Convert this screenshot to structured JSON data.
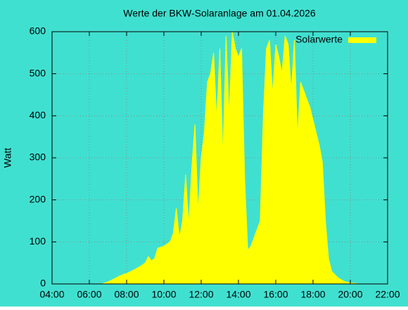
{
  "chart_data": {
    "type": "area",
    "title": "Werte der BKW-Solaranlage am 01.04.2026",
    "y_label": "Watt",
    "x": [
      "06:40",
      "07:00",
      "07:20",
      "07:40",
      "08:00",
      "08:20",
      "08:40",
      "09:00",
      "09:10",
      "09:20",
      "09:30",
      "09:40",
      "10:00",
      "10:20",
      "10:30",
      "10:40",
      "10:50",
      "11:00",
      "11:10",
      "11:20",
      "11:30",
      "11:40",
      "11:50",
      "12:00",
      "12:10",
      "12:20",
      "12:30",
      "12:40",
      "12:50",
      "13:00",
      "13:10",
      "13:20",
      "13:30",
      "13:40",
      "13:50",
      "14:00",
      "14:10",
      "14:20",
      "14:30",
      "14:40",
      "14:50",
      "15:00",
      "15:10",
      "15:20",
      "15:30",
      "15:40",
      "15:50",
      "16:00",
      "16:10",
      "16:20",
      "16:30",
      "16:40",
      "16:50",
      "17:00",
      "17:10",
      "17:20",
      "17:30",
      "17:40",
      "17:50",
      "18:00",
      "18:10",
      "18:20",
      "18:30",
      "18:40",
      "18:50",
      "19:00",
      "19:20",
      "19:40",
      "20:00",
      "20:30"
    ],
    "series": [
      {
        "name": "Solarwerte",
        "color": "#ffff00",
        "values": [
          0,
          5,
          12,
          20,
          25,
          32,
          40,
          50,
          65,
          55,
          60,
          85,
          90,
          100,
          120,
          180,
          110,
          150,
          260,
          140,
          280,
          380,
          170,
          300,
          360,
          480,
          500,
          550,
          390,
          560,
          300,
          590,
          400,
          600,
          560,
          540,
          560,
          250,
          80,
          90,
          110,
          130,
          150,
          400,
          560,
          580,
          450,
          570,
          540,
          500,
          590,
          570,
          460,
          580,
          350,
          480,
          460,
          440,
          420,
          390,
          360,
          330,
          290,
          150,
          60,
          30,
          15,
          6,
          2,
          0
        ]
      }
    ],
    "xlim": [
      "04:00",
      "22:00"
    ],
    "xticks": [
      "04:00",
      "06:00",
      "08:00",
      "10:00",
      "12:00",
      "14:00",
      "16:00",
      "18:00",
      "20:00",
      "22:00"
    ],
    "ylim": [
      0,
      600
    ],
    "yticks": [
      0,
      100,
      200,
      300,
      400,
      500,
      600
    ],
    "grid": true,
    "legend": "top-right",
    "background": "#40e0d0"
  }
}
